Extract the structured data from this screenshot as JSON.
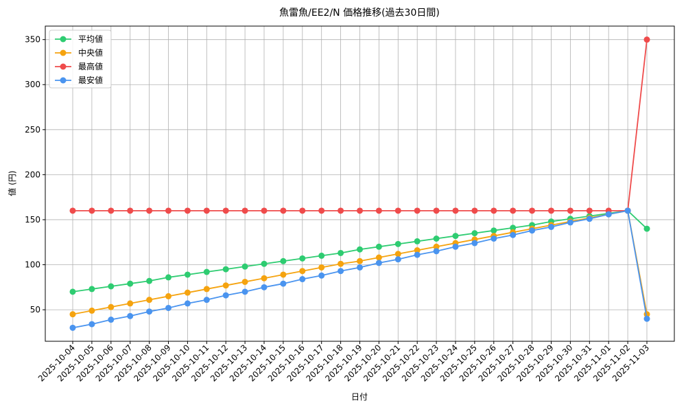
{
  "chart_data": {
    "type": "line",
    "title": "魚雷魚/EE2/N 価格推移(過去30日間)",
    "x_label": "日付",
    "y_label": "値 (円)",
    "categories": [
      "2025-10-04",
      "2025-10-05",
      "2025-10-06",
      "2025-10-07",
      "2025-10-08",
      "2025-10-09",
      "2025-10-10",
      "2025-10-11",
      "2025-10-12",
      "2025-10-13",
      "2025-10-14",
      "2025-10-15",
      "2025-10-16",
      "2025-10-17",
      "2025-10-18",
      "2025-10-19",
      "2025-10-20",
      "2025-10-21",
      "2025-10-22",
      "2025-10-23",
      "2025-10-24",
      "2025-10-25",
      "2025-10-26",
      "2025-10-27",
      "2025-10-28",
      "2025-10-29",
      "2025-10-30",
      "2025-10-31",
      "2025-11-01",
      "2025-11-02",
      "2025-11-03"
    ],
    "series": [
      {
        "name": "平均値",
        "color": "#2ecc71",
        "values": [
          70,
          73,
          76,
          79,
          82,
          86,
          89,
          92,
          95,
          98,
          101,
          104,
          107,
          110,
          113,
          117,
          120,
          123,
          126,
          129,
          132,
          135,
          138,
          141,
          144,
          148,
          151,
          154,
          157,
          160,
          140
        ]
      },
      {
        "name": "中央値",
        "color": "#f5a30f",
        "values": [
          45,
          49,
          53,
          57,
          61,
          65,
          69,
          73,
          77,
          81,
          85,
          89,
          93,
          97,
          101,
          104,
          108,
          112,
          116,
          120,
          124,
          128,
          132,
          136,
          140,
          144,
          148,
          152,
          156,
          160,
          45
        ]
      },
      {
        "name": "最高値",
        "color": "#ef4b4b",
        "values": [
          160,
          160,
          160,
          160,
          160,
          160,
          160,
          160,
          160,
          160,
          160,
          160,
          160,
          160,
          160,
          160,
          160,
          160,
          160,
          160,
          160,
          160,
          160,
          160,
          160,
          160,
          160,
          160,
          160,
          160,
          350
        ]
      },
      {
        "name": "最安値",
        "color": "#4a94ef",
        "values": [
          30,
          34,
          39,
          43,
          48,
          52,
          57,
          61,
          66,
          70,
          75,
          79,
          84,
          88,
          93,
          97,
          102,
          106,
          111,
          115,
          120,
          124,
          129,
          133,
          138,
          142,
          147,
          151,
          156,
          160,
          40
        ]
      }
    ],
    "ylim": [
      15,
      365
    ],
    "yticks": [
      50,
      100,
      150,
      200,
      250,
      300,
      350
    ],
    "grid": true,
    "legend": "upper-left"
  }
}
